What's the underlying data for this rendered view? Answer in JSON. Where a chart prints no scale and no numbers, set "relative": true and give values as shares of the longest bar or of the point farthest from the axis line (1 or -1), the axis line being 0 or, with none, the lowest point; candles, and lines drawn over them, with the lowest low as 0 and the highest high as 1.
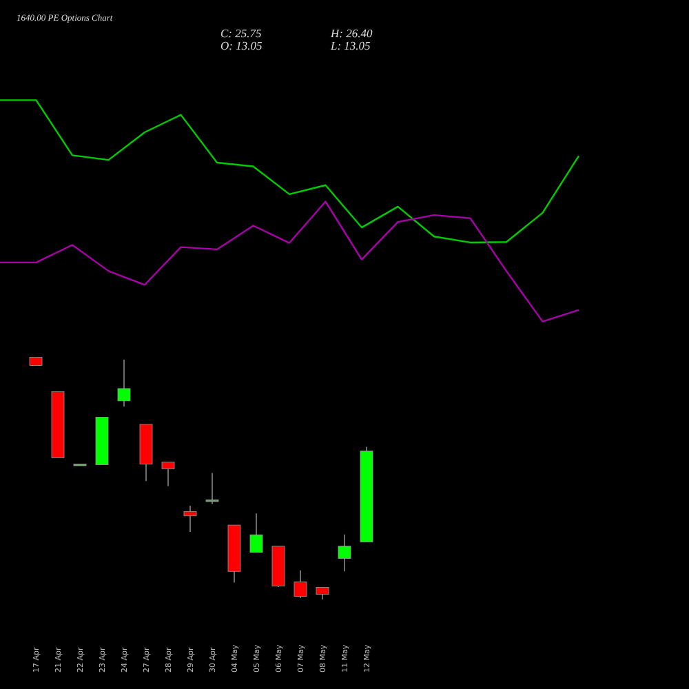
{
  "chart_data": [
    {
      "type": "line",
      "title": "1640.00 PE Options Chart",
      "annotations": [
        "C: 25.75",
        "O: 13.05",
        "H: 26.40",
        "L: 13.05"
      ],
      "relative": true,
      "categories": [
        null,
        null,
        null,
        null,
        null,
        null,
        null,
        null,
        null,
        null,
        null,
        null,
        null,
        null,
        null,
        null,
        null
      ],
      "series": [
        {
          "color": "#00cc00",
          "values": [
            1.0,
            1.0,
            0.751,
            0.73,
            0.855,
            0.934,
            0.718,
            0.701,
            0.575,
            0.616,
            0.425,
            0.519,
            0.384,
            0.357,
            0.359,
            0.491,
            0.748
          ]
        },
        {
          "color": "#aa00aa",
          "values": [
            0.267,
            0.267,
            0.346,
            0.228,
            0.166,
            0.336,
            0.326,
            0.433,
            0.355,
            0.542,
            0.28,
            0.45,
            0.481,
            0.467,
            0.228,
            0.0,
            0.052
          ]
        }
      ]
    },
    {
      "type": "candlestick",
      "relative": true,
      "categories": [
        "17 Apr",
        "21 Apr",
        "22 Apr",
        "23 Apr",
        "24 Apr",
        "27 Apr",
        "28 Apr",
        "29 Apr",
        "30 Apr",
        "04 May",
        "05 May",
        "06 May",
        "07 May",
        "08 May",
        "11 May",
        "12 May"
      ],
      "ohlc": [
        [
          1.0,
          1.0,
          0.966,
          0.966
        ],
        [
          0.858,
          0.858,
          0.585,
          0.585
        ],
        [
          0.559,
          0.559,
          0.559,
          0.559
        ],
        [
          0.556,
          0.753,
          0.556,
          0.753
        ],
        [
          0.82,
          0.99,
          0.797,
          0.871
        ],
        [
          0.723,
          0.723,
          0.489,
          0.559
        ],
        [
          0.567,
          0.567,
          0.468,
          0.539
        ],
        [
          0.363,
          0.387,
          0.279,
          0.345
        ],
        [
          0.411,
          0.522,
          0.394,
          0.411
        ],
        [
          0.307,
          0.307,
          0.07,
          0.116
        ],
        [
          0.194,
          0.355,
          0.194,
          0.267
        ],
        [
          0.22,
          0.22,
          0.051,
          0.055
        ],
        [
          0.072,
          0.12,
          0.006,
          0.013
        ],
        [
          0.05,
          0.05,
          0.0,
          0.021
        ],
        [
          0.169,
          0.268,
          0.116,
          0.22
        ],
        [
          0.237,
          0.63,
          0.237,
          0.613
        ]
      ],
      "colors": [
        "#ff0000",
        "#ff0000",
        "#66aa66",
        "#00ff00",
        "#00ff00",
        "#ff0000",
        "#ff0000",
        "#ff0000",
        "#66aa66",
        "#ff0000",
        "#00ff00",
        "#ff0000",
        "#ff0000",
        "#ff0000",
        "#00ff00",
        "#00ff00"
      ]
    }
  ]
}
